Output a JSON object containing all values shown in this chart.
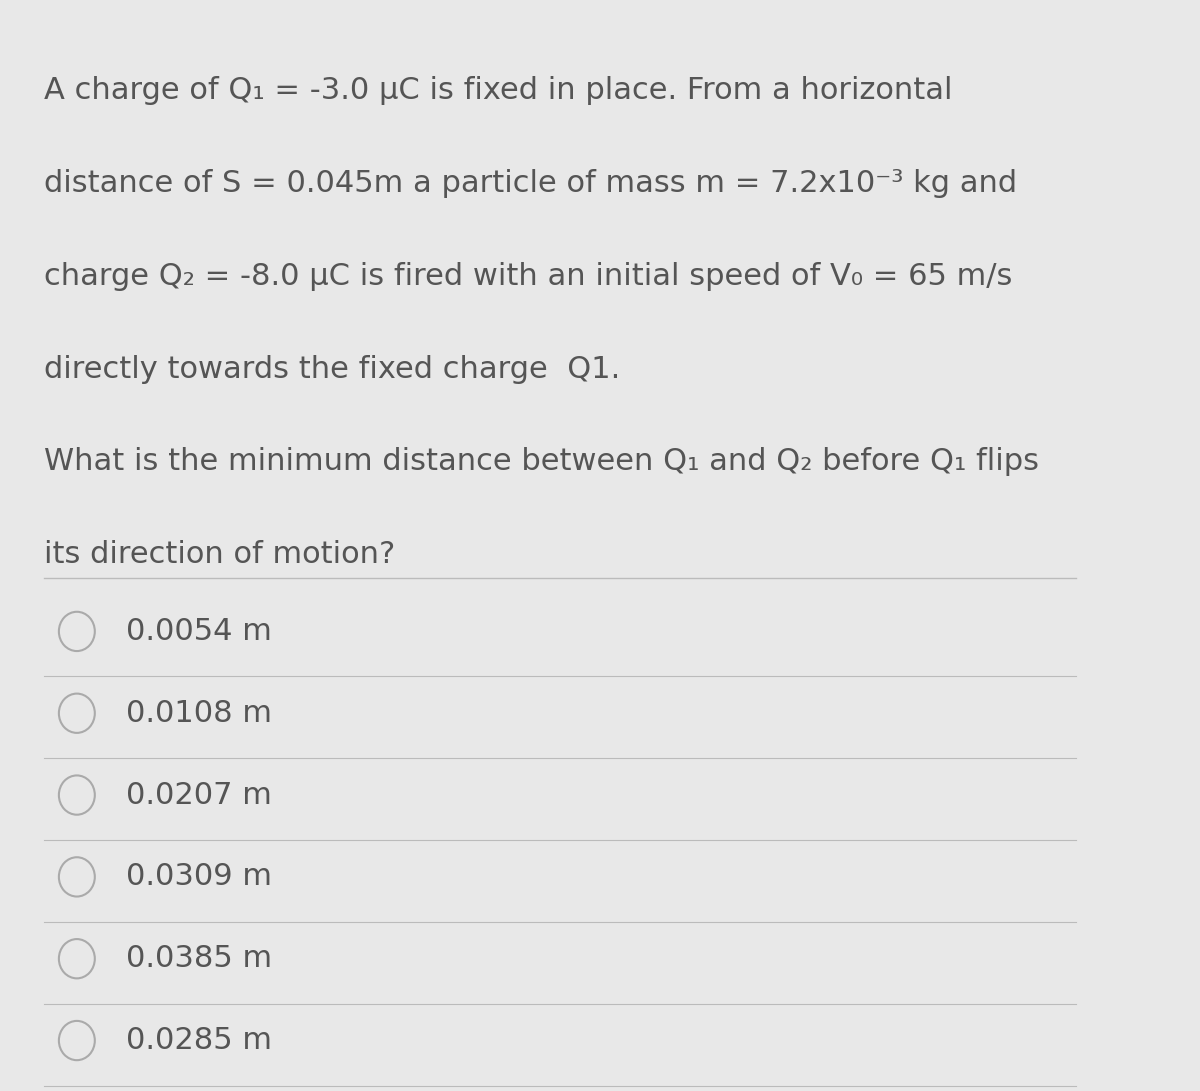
{
  "background_color": "#e8e8e8",
  "text_color": "#555555",
  "question_lines": [
    "A charge of Q₁ = -3.0 μC is fixed in place. From a horizontal",
    "distance of S = 0.045m a particle of mass m = 7.2x10⁻³ kg and",
    "charge Q₂ = -8.0 μC is fired with an initial speed of V₀ = 65 m/s",
    "directly towards the fixed charge  Q1.",
    "What is the minimum distance between Q₁ and Q₂ before Q₁ flips",
    "its direction of motion?"
  ],
  "choices": [
    "0.0054 m",
    "0.0108 m",
    "0.0207 m",
    "0.0309 m",
    "0.0385 m",
    "0.0285 m"
  ],
  "line_color": "#bbbbbb",
  "circle_color": "#aaaaaa",
  "font_size_question": 22,
  "font_size_choice": 22,
  "font_family": "DejaVu Sans"
}
